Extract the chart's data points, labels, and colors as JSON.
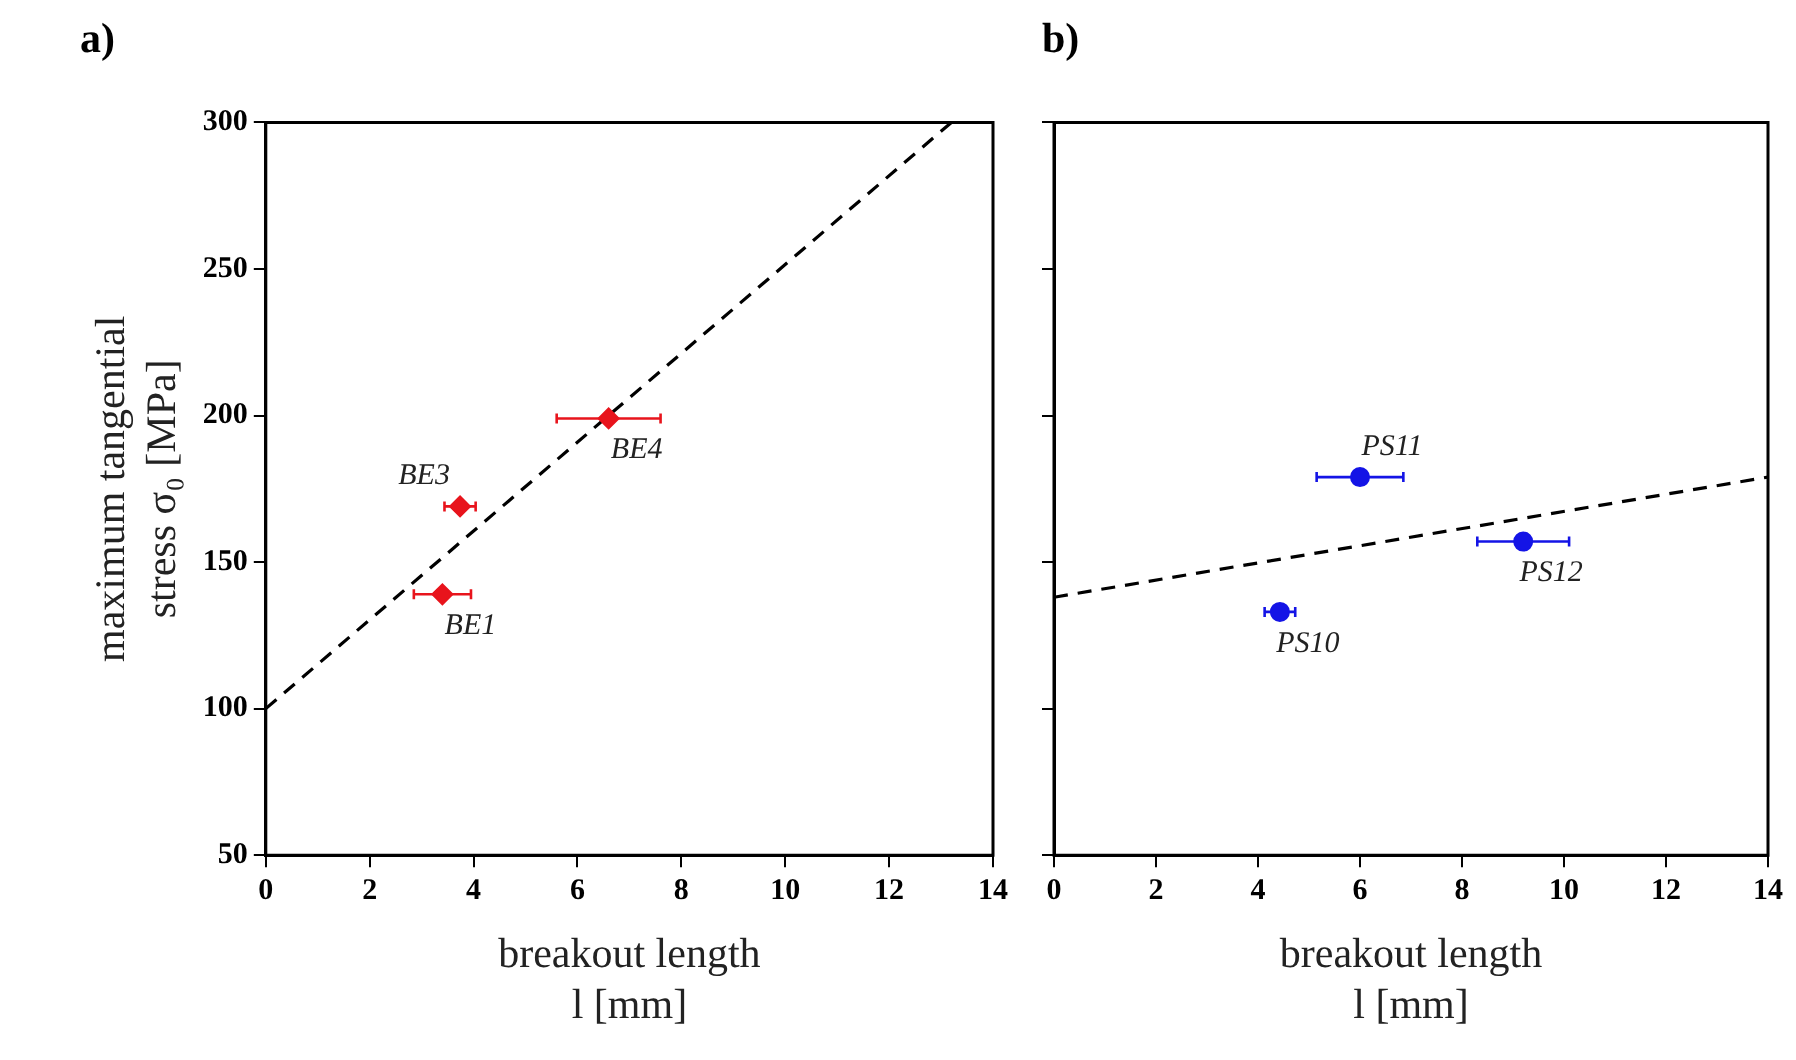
{
  "chart_data": [
    {
      "type": "scatter",
      "title": "a)",
      "xlabel": "breakout length l [mm]",
      "ylabel": "maximum tangential stress σ₀ [MPa]",
      "xlim": [
        0,
        14
      ],
      "xticks": [
        0,
        2,
        4,
        6,
        8,
        10,
        12,
        14
      ],
      "ylim": [
        50,
        300
      ],
      "yticks": [
        50,
        100,
        150,
        200,
        250,
        300
      ],
      "grid": false,
      "legend": false,
      "series": [
        {
          "color": "#e8141c",
          "marker": "diamond",
          "x": [
            3.4,
            3.74,
            6.6
          ],
          "values": [
            139,
            169,
            199
          ],
          "xerrors": [
            0.55,
            0.3,
            1.0
          ]
        },
        {
          "type": "line",
          "color": "#000000",
          "line_style": "dashed",
          "x": [
            0,
            13.2
          ],
          "values": [
            100,
            300
          ]
        }
      ],
      "annotations": [
        {
          "text": "BE1",
          "x": 3.4,
          "y": 139
        },
        {
          "text": "BE3",
          "x": 3.74,
          "y": 169
        },
        {
          "text": "BE4",
          "x": 6.6,
          "y": 199
        }
      ]
    },
    {
      "type": "scatter",
      "title": "b)",
      "xlabel": "breakout length l [mm]",
      "xlim": [
        0,
        14
      ],
      "xticks": [
        0,
        2,
        4,
        6,
        8,
        10,
        12,
        14
      ],
      "ylim": [
        50,
        300
      ],
      "yticks": [
        50,
        100,
        150,
        200,
        250,
        300
      ],
      "tick_labels": "x",
      "grid": false,
      "legend": false,
      "series": [
        {
          "color": "#1414e6",
          "marker": "circle",
          "x": [
            4.43,
            6.0,
            9.2
          ],
          "values": [
            133,
            179,
            157
          ],
          "xerrors": [
            0.3,
            0.85,
            0.9
          ]
        },
        {
          "type": "line",
          "color": "#000000",
          "line_style": "dashed",
          "x": [
            0,
            14
          ],
          "values": [
            138,
            179
          ]
        }
      ],
      "annotations": [
        {
          "text": "PS10",
          "x": 4.43,
          "y": 133
        },
        {
          "text": "PS11",
          "x": 6.0,
          "y": 179
        },
        {
          "text": "PS12",
          "x": 9.2,
          "y": 157
        }
      ]
    }
  ]
}
